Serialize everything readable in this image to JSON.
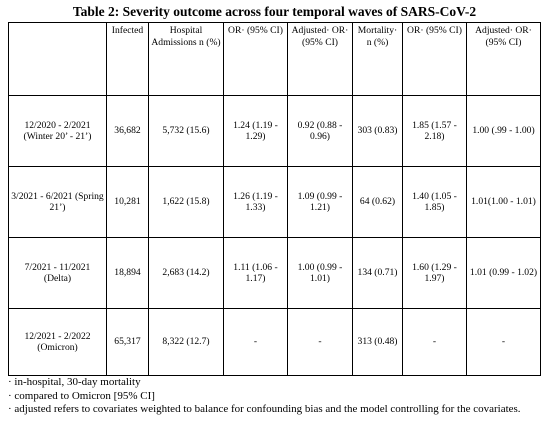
{
  "title": "Table 2: Severity outcome across four temporal waves of SARS-CoV-2",
  "columns": [
    "",
    "Infected",
    "Hospital Admissions n (%)",
    "OR· (95% CI)",
    "Adjusted· OR· (95% CI)",
    "Mortality· n (%)",
    "OR· (95% CI)",
    "Adjusted· OR· (95% CI)"
  ],
  "rows": [
    {
      "period": "12/2020 - 2/2021 (Winter 20’ - 21’)",
      "infected": "36,682",
      "hosp": "5,732 (15.6)",
      "or1": "1.24 (1.19 - 1.29)",
      "aor1": "0.92 (0.88 - 0.96)",
      "mort": "303 (0.83)",
      "or2": "1.85 (1.57 - 2.18)",
      "aor2": "1.00 (.99 - 1.00)"
    },
    {
      "period": "3/2021 - 6/2021 (Spring 21’)",
      "infected": "10,281",
      "hosp": "1,622 (15.8)",
      "or1": "1.26 (1.19 - 1.33)",
      "aor1": "1.09 (0.99 - 1.21)",
      "mort": "64 (0.62)",
      "or2": "1.40 (1.05 - 1.85)",
      "aor2": "1.01(1.00 - 1.01)"
    },
    {
      "period": "7/2021 - 11/2021 (Delta)",
      "infected": "18,894",
      "hosp": "2,683 (14.2)",
      "or1": "1.11 (1.06 - 1.17)",
      "aor1": "1.00 (0.99 - 1.01)",
      "mort": "134 (0.71)",
      "or2": "1.60 (1.29 - 1.97)",
      "aor2": "1.01 (0.99 - 1.02)"
    },
    {
      "period": "12/2021 - 2/2022 (Omicron)",
      "infected": "65,317",
      "hosp": "8,322 (12.7)",
      "or1": "-",
      "aor1": "-",
      "mort": "313 (0.48)",
      "or2": "-",
      "aor2": "-"
    }
  ],
  "notes": [
    "· in-hospital, 30-day mortality",
    "· compared to Omicron [95% CI]",
    "· adjusted refers to covariates weighted to balance for confounding bias and the model controlling for the covariates."
  ]
}
